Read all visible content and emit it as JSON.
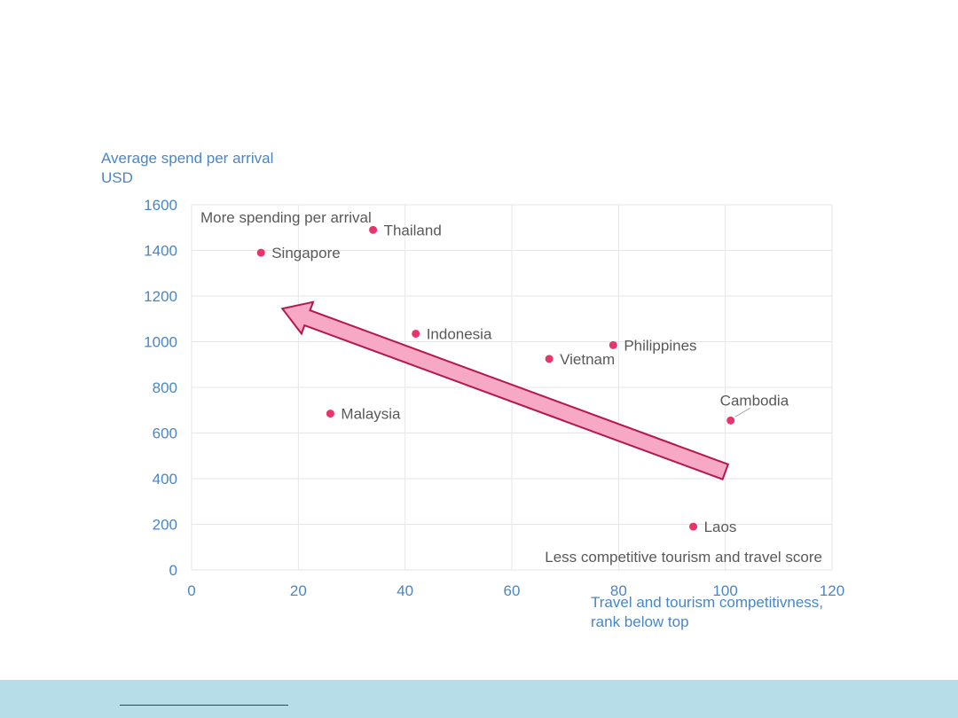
{
  "chart_data": {
    "type": "scatter",
    "title": "",
    "ylabel_lines": [
      "Average spend per arrival",
      "USD"
    ],
    "xlabel_lines": [
      "Travel and tourism competitivness,",
      "rank below top"
    ],
    "xlim": [
      0,
      120
    ],
    "ylim": [
      0,
      1600
    ],
    "x_ticks": [
      0,
      20,
      40,
      60,
      80,
      100,
      120
    ],
    "y_ticks": [
      0,
      200,
      400,
      600,
      800,
      1000,
      1200,
      1400,
      1600
    ],
    "grid": true,
    "legend": "none",
    "points": [
      {
        "label": "Singapore",
        "x": 13,
        "y": 1390
      },
      {
        "label": "Thailand",
        "x": 34,
        "y": 1490
      },
      {
        "label": "Indonesia",
        "x": 42,
        "y": 1035
      },
      {
        "label": "Malaysia",
        "x": 26,
        "y": 685
      },
      {
        "label": "Vietnam",
        "x": 67,
        "y": 925
      },
      {
        "label": "Philippines",
        "x": 79,
        "y": 985
      },
      {
        "label": "Cambodia",
        "x": 101,
        "y": 655
      },
      {
        "label": "Laos",
        "x": 94,
        "y": 190
      }
    ],
    "annotations": {
      "top_left": "More spending per arrival",
      "bottom_right": "Less competitive tourism and travel score"
    },
    "arrow": {
      "from": [
        100,
        430
      ],
      "to": [
        17,
        1145
      ]
    },
    "colors": {
      "marker": "#e8336b",
      "axis_text": "#4a86c5",
      "annotation_text": "#595959",
      "arrow_fill": "#f7a8c4",
      "arrow_stroke": "#b5174f",
      "grid": "#e6e6e6"
    }
  }
}
